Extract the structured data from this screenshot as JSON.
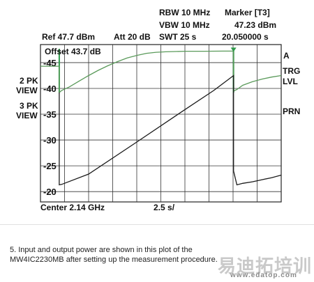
{
  "header": {
    "rbw": "RBW 10 MHz",
    "vbw": "VBW 10 MHz",
    "swt": "SWT 25 s",
    "marker_title": "Marker [T3]",
    "marker_level": "47.23 dBm",
    "marker_time": "20.050000 s",
    "ref": "Ref 47.7 dBm",
    "att": "Att 20 dB",
    "offset": "Offset 43.7 dB"
  },
  "left_labels": {
    "view2_line1": "2 PK",
    "view2_line2": "VIEW",
    "view3_line1": "3 PK",
    "view3_line2": "VIEW"
  },
  "right_labels": {
    "a": "A",
    "trg": "TRG",
    "lvl": "LVL",
    "prn": "PRN"
  },
  "footer": {
    "center": "Center 2.14 GHz",
    "span": "2.5 s/"
  },
  "caption": "5. Input and output power are shown in this plot of the MW4IC2230MB after setting up the measurement procedure.",
  "watermark": {
    "chinese": "易迪拓培训",
    "url": "www.edatop.com"
  },
  "colors": {
    "output_trace": "#5a9a5a",
    "input_trace": "#1a1a1a",
    "marker": "#2e9a4a",
    "grid": "#333333"
  },
  "chart_data": {
    "type": "line",
    "ylabel": "",
    "xlabel": "",
    "ytick_labels": [
      "-45",
      "-40",
      "-35",
      "-30",
      "-25",
      "-20"
    ],
    "yticks": [
      45,
      40,
      35,
      30,
      25,
      20
    ],
    "ylim": [
      18,
      48.5
    ],
    "xlim": [
      0,
      25
    ],
    "grid": true,
    "series": [
      {
        "key": "output",
        "x": [
          0,
          1.95,
          1.95,
          2.2,
          3,
          4,
          5,
          6,
          7,
          8,
          9,
          10,
          11,
          12,
          13,
          14,
          15,
          16,
          17,
          18,
          19,
          20.05,
          20.05,
          20.4,
          21,
          22,
          23,
          24,
          25
        ],
        "values": [
          44.3,
          44.3,
          39.2,
          39.6,
          40.3,
          41.4,
          42.5,
          43.5,
          44.4,
          45.2,
          45.9,
          46.4,
          46.8,
          47.0,
          47.1,
          47.15,
          47.2,
          47.2,
          47.2,
          47.22,
          47.23,
          47.23,
          39.5,
          39.8,
          40.6,
          41.3,
          41.8,
          42.2,
          42.5
        ]
      },
      {
        "key": "input",
        "x": [
          1.95,
          1.95,
          2.2,
          5,
          10,
          15,
          18,
          20.05,
          20.05,
          20.4,
          21,
          22,
          23,
          24,
          25
        ],
        "values": [
          39.2,
          21.3,
          21.4,
          23.4,
          29.6,
          35.9,
          39.6,
          42.5,
          24.0,
          21.3,
          21.6,
          21.9,
          22.3,
          22.7,
          23.2
        ]
      }
    ],
    "markers": [
      {
        "x": 1.95,
        "label": ""
      },
      {
        "x": 20.05,
        "y": 47.23,
        "label": ""
      }
    ]
  }
}
